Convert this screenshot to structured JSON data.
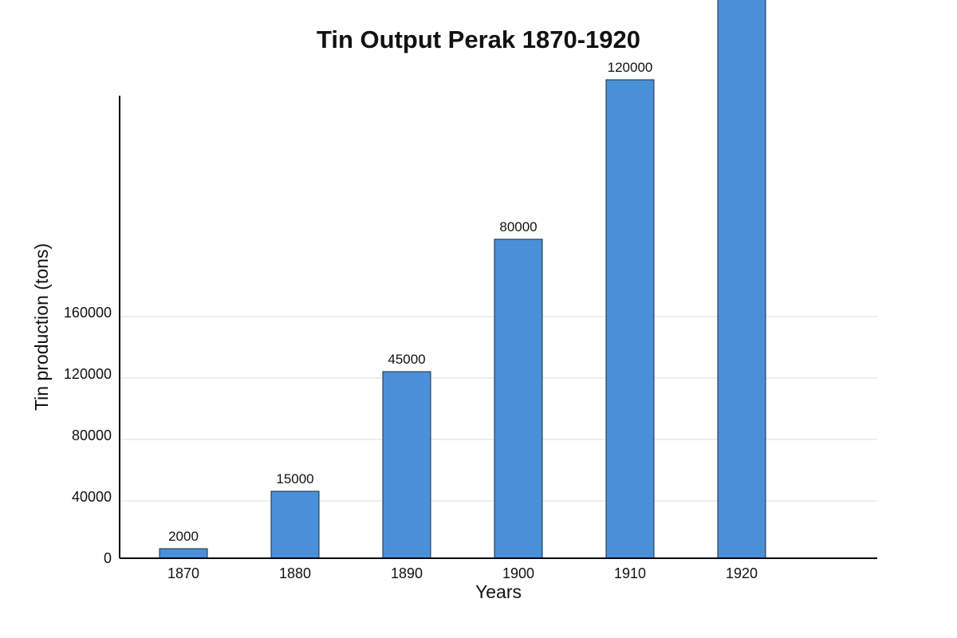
{
  "chart_data": {
    "type": "bar",
    "title": "Tin Output Perak 1870-1920",
    "xlabel": "Years",
    "ylabel": "Tin production (tons)",
    "categories": [
      "1870",
      "1880",
      "1890",
      "1900",
      "1910",
      "1920"
    ],
    "values": [
      2000,
      15000,
      45000,
      80000,
      120000,
      null
    ],
    "data_labels": [
      "2000",
      "15000",
      "45000",
      "80000",
      "120000",
      ""
    ],
    "y_ticks": [
      "0",
      "40000",
      "80000",
      "120000",
      "160000"
    ],
    "bar_color": "#4a90d9",
    "grid": true,
    "legend": "none"
  }
}
